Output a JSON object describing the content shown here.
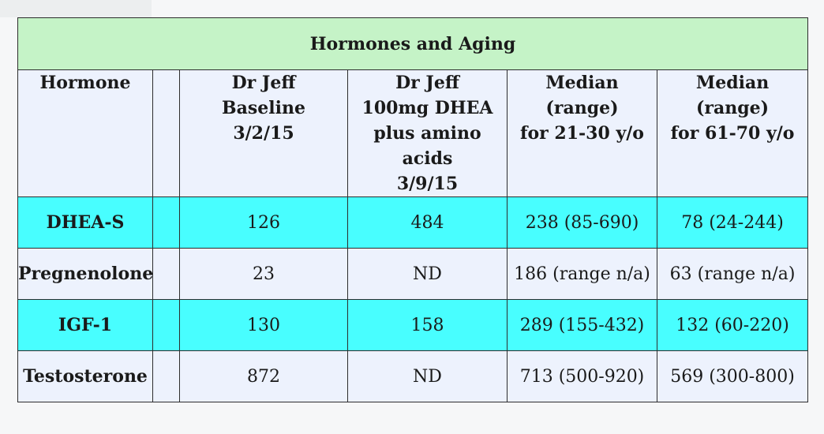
{
  "table": {
    "title": "Hormones and Aging",
    "headers": {
      "hormone": "Hormone",
      "baseline": [
        "Dr Jeff",
        "Baseline",
        "3/2/15"
      ],
      "dhea": [
        "Dr Jeff",
        "100mg DHEA",
        "plus amino acids",
        "3/9/15"
      ],
      "young": [
        "Median (range)",
        "for 21-30 y/o"
      ],
      "old": [
        "Median (range)",
        "for 61-70 y/o"
      ]
    },
    "rows": [
      {
        "hormone": "DHEA-S",
        "baseline": "126",
        "dhea": "484",
        "young": "238 (85-690)",
        "old": "78 (24-244)"
      },
      {
        "hormone": "Pregnenolone",
        "baseline": "23",
        "dhea": "ND",
        "young": "186 (range n/a)",
        "old": "63 (range n/a)"
      },
      {
        "hormone": "IGF-1",
        "baseline": "130",
        "dhea": "158",
        "young": "289 (155-432)",
        "old": "132 (60-220)"
      },
      {
        "hormone": "Testosterone",
        "baseline": "872",
        "dhea": "ND",
        "young": "713 (500-920)",
        "old": "569 (300-800)"
      }
    ],
    "colors": {
      "title_bg": "#c5f3c7",
      "header_bg": "#edf2fd",
      "highlight_row_bg": "#48feff",
      "plain_row_bg": "#edf2fd"
    }
  }
}
